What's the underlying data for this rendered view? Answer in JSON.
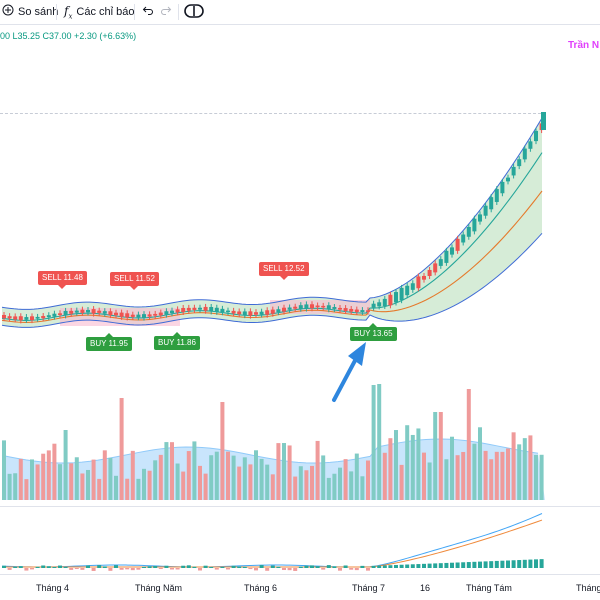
{
  "toolbar": {
    "compare_label": "So sánh",
    "indicators_label": "Các chỉ báo",
    "indicators_icon": "function-icon",
    "compare_icon": "plus-circle-icon",
    "undo_icon": "undo-icon",
    "redo_icon": "redo-icon",
    "indicators_templates_icon": "templates-icon"
  },
  "legend": {
    "ohlc_text": "00 L35.25 C37.00 +2.30 (+6.63%)",
    "author": "Trần N"
  },
  "time_axis": {
    "labels": [
      "Tháng 4",
      "Tháng Năm",
      "Tháng 6",
      "Tháng 7",
      "16",
      "Tháng Tám",
      "Tháng"
    ]
  },
  "signals": [
    {
      "type": "sell",
      "label": "SELL 11.48"
    },
    {
      "type": "sell",
      "label": "SELL 11.52"
    },
    {
      "type": "sell",
      "label": "SELL 12.52"
    },
    {
      "type": "buy",
      "label": "BUY 11.95"
    },
    {
      "type": "buy",
      "label": "BUY 11.86"
    },
    {
      "type": "buy",
      "label": "BUY 13.65"
    }
  ],
  "colors": {
    "up": "#26a69a",
    "down": "#ef5350",
    "band_fill_up": "#c8e6c9",
    "band_fill_down": "#f8bbd0",
    "band_line": "#3f6bd6",
    "ma_fast": "#26a69a",
    "ma_slow": "#e57a2c",
    "volume_area": "#bbdefb",
    "arrow": "#2e86de",
    "author": "#e040fb"
  }
}
